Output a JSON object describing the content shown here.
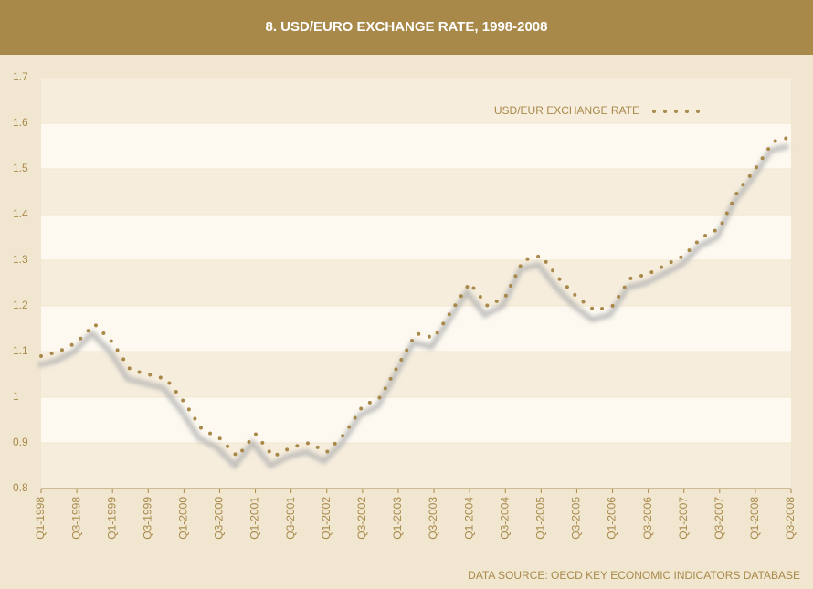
{
  "chart_data": {
    "type": "line",
    "title": "8. USD/EURO EXCHANGE RATE, 1998-2008",
    "source": "DATA SOURCE: OECD KEY ECONOMIC INDICATORS DATABASE",
    "categories": [
      "Q1-1998",
      null,
      "Q3-1998",
      null,
      "Q1-1999",
      null,
      "Q3-1999",
      null,
      "Q1-2000",
      null,
      "Q3-2000",
      null,
      "Q1-2001",
      null,
      "Q3-2001",
      null,
      "Q1-2002",
      null,
      "Q3-2002",
      null,
      "Q1-2003",
      null,
      "Q3-2003",
      null,
      "Q1-2004",
      null,
      "Q3-2004",
      null,
      "Q1-2005",
      null,
      "Q3-2005",
      null,
      "Q1-2006",
      null,
      "Q3-2006",
      null,
      "Q1-2007",
      null,
      "Q3-2007",
      null,
      "Q1-2008",
      null,
      "Q3-2008"
    ],
    "series": [
      {
        "name": "USD/EUR EXCHANGE RATE",
        "color": "#a8894a",
        "values": [
          1.09,
          1.1,
          1.12,
          1.16,
          1.12,
          1.06,
          1.05,
          1.04,
          0.99,
          0.93,
          0.91,
          0.87,
          0.92,
          0.87,
          0.89,
          0.9,
          0.88,
          0.92,
          0.98,
          1.0,
          1.07,
          1.14,
          1.13,
          1.19,
          1.25,
          1.2,
          1.22,
          1.3,
          1.31,
          1.26,
          1.22,
          1.19,
          1.2,
          1.26,
          1.27,
          1.29,
          1.31,
          1.35,
          1.37,
          1.45,
          1.5,
          1.56,
          1.57
        ]
      }
    ],
    "ylim": [
      0.8,
      1.7
    ],
    "yticks": [
      0.8,
      0.9,
      1,
      1.1,
      1.2,
      1.3,
      1.4,
      1.5,
      1.6,
      1.7
    ],
    "grid": true,
    "legend": "top-right"
  }
}
